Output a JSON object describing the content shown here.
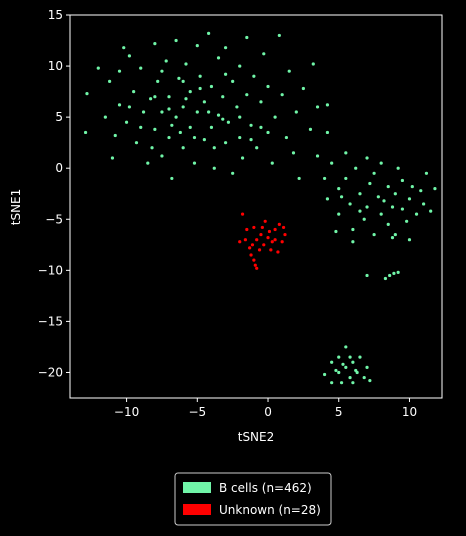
{
  "chart_data": {
    "type": "scatter",
    "x_label": "tSNE2",
    "y_label": "tSNE1",
    "xlim": [
      -14,
      12.3
    ],
    "ylim": [
      -22.5,
      15
    ],
    "xticks": [
      {
        "value": -10,
        "label": "−10"
      },
      {
        "value": -5,
        "label": "−5"
      },
      0,
      5,
      10
    ],
    "yticks": [
      {
        "value": -20,
        "label": "−20"
      },
      {
        "value": -15,
        "label": "−15"
      },
      {
        "value": -10,
        "label": "−10"
      },
      {
        "value": -5,
        "label": "−5"
      },
      0,
      5,
      10,
      15
    ],
    "grid": false,
    "legend": "below",
    "series": [
      {
        "name": "B cells (n=462)",
        "color": "#70f5a8",
        "x": [
          -12.8,
          -12.9,
          -12,
          -11.5,
          -11.2,
          -11,
          -10.8,
          -10.5,
          -10.2,
          -10,
          -9.8,
          -9.5,
          -9.3,
          -9,
          -8.8,
          -8.5,
          -8.3,
          -8,
          -8,
          -7.8,
          -7.5,
          -7.5,
          -7.2,
          -7,
          -7,
          -6.8,
          -6.5,
          -6.5,
          -6.3,
          -6,
          -6,
          -5.8,
          -5.5,
          -5.5,
          -5.2,
          -5,
          -5,
          -4.8,
          -4.5,
          -4.5,
          -4.2,
          -4,
          -4,
          -3.8,
          -3.5,
          -3.5,
          -3.2,
          -3,
          -3,
          -2.8,
          -2.5,
          -2.5,
          -2.2,
          -2,
          -2,
          -1.8,
          -1.5,
          -1.5,
          -1.2,
          -1,
          -0.8,
          -0.5,
          -0.3,
          0,
          0,
          0.3,
          0.5,
          0.8,
          1,
          1.3,
          1.5,
          1.8,
          2,
          2.2,
          2.5,
          3,
          3.2,
          3.5,
          4.2,
          4.2,
          -9,
          -8,
          -6.8,
          -6,
          -5.2,
          -4.2,
          -3.8,
          -3,
          -2,
          -1.2,
          -0.5,
          -7.5,
          -9.8,
          -5.8,
          -4.8,
          -3.2,
          -6.2,
          -7,
          -8.2,
          -10.5,
          3.5,
          4,
          4.2,
          4.5,
          5,
          5,
          5.5,
          5.5,
          5.8,
          6,
          6.2,
          6.5,
          6.8,
          7,
          7,
          7.2,
          7.5,
          7.8,
          8,
          8,
          8.2,
          8.5,
          8.5,
          8.8,
          9,
          9,
          9.2,
          9.5,
          9.5,
          9.8,
          10,
          10,
          10.2,
          10.5,
          10.8,
          11,
          11.2,
          11.5,
          11.8,
          6,
          5.2,
          6.5,
          7.5,
          8.8,
          7,
          8.3,
          8.6,
          8.9,
          9.2,
          4.8,
          4,
          4.5,
          4.5,
          5,
          5,
          5.2,
          5.5,
          5.5,
          5.8,
          5.8,
          6,
          6,
          6.3,
          6.5,
          6.8,
          7,
          7.2,
          5.3,
          4.8,
          6.2
        ],
        "values": [
          7.3,
          3.5,
          9.8,
          5,
          8.5,
          1,
          3.2,
          6.2,
          11.8,
          4.5,
          11,
          7.5,
          2.5,
          9.8,
          5.5,
          0.5,
          6.8,
          12.2,
          3.8,
          8.5,
          1.2,
          5.5,
          10.5,
          3,
          7,
          -1,
          12.5,
          5,
          8.8,
          2,
          6,
          10.2,
          4,
          7.5,
          0.5,
          12,
          5.5,
          9,
          2.8,
          6.5,
          13.2,
          4,
          8,
          0,
          10.8,
          5.2,
          7,
          2.5,
          11.8,
          4.5,
          8.5,
          -0.5,
          6,
          3,
          10,
          1,
          7.2,
          12.8,
          4.2,
          9,
          2,
          6.5,
          11.2,
          3.5,
          8,
          0.5,
          5,
          13,
          7.2,
          3,
          9.5,
          1.5,
          5.5,
          -1,
          7.8,
          3.8,
          10.2,
          6,
          3.5,
          6.2,
          4,
          7,
          4.2,
          8.5,
          3,
          5.5,
          2,
          9.2,
          5,
          2.8,
          4,
          9.5,
          6,
          6.8,
          7.8,
          4.8,
          3.5,
          5.8,
          2,
          9.5,
          1.2,
          -1,
          -3,
          0.5,
          -2,
          -4.5,
          1.5,
          -1,
          -3.5,
          -6,
          0,
          -2.5,
          -5,
          1,
          -3.8,
          -1.5,
          -6.5,
          -2.8,
          0.5,
          -4.5,
          -3.2,
          -1.8,
          -5.5,
          -3.8,
          -2.5,
          -6.5,
          0,
          -4,
          -1.2,
          -5.2,
          -3,
          -7,
          -1.8,
          -4.5,
          -2.2,
          -3.5,
          -0.5,
          -4.2,
          -2,
          -7.2,
          -2.8,
          -4.2,
          -0.5,
          -6.8,
          -10.5,
          -10.8,
          -10.5,
          -10.3,
          -10.2,
          -6.2,
          -20.2,
          -19,
          -21,
          -18.5,
          -20,
          -21,
          -17.5,
          -19.5,
          -18.5,
          -20.5,
          -19,
          -21,
          -20,
          -18.5,
          -20.5,
          -19.5,
          -20.8,
          -19.2,
          -19.8,
          -19.8
        ]
      },
      {
        "name": "Unknown (n=28)",
        "color": "#ff0000",
        "x": [
          -2,
          -1.8,
          -1.5,
          -1.3,
          -1.2,
          -1,
          -0.9,
          -0.8,
          -1,
          -0.8,
          -0.5,
          -0.3,
          -0.2,
          0,
          0.2,
          0.3,
          0.5,
          0.5,
          0.8,
          1,
          1.2,
          -1.1,
          -0.6,
          0.1,
          -1.6,
          0.7,
          -0.4,
          1.1
        ],
        "values": [
          -7.2,
          -4.5,
          -6,
          -7.8,
          -8.5,
          -9,
          -9.5,
          -9.8,
          -5.8,
          -7,
          -6.5,
          -7.5,
          -5.2,
          -6.8,
          -8,
          -7.2,
          -6,
          -7,
          -5.5,
          -7.2,
          -6.5,
          -7.5,
          -8,
          -6.2,
          -7,
          -8.2,
          -5.8,
          -5.8
        ]
      }
    ]
  }
}
